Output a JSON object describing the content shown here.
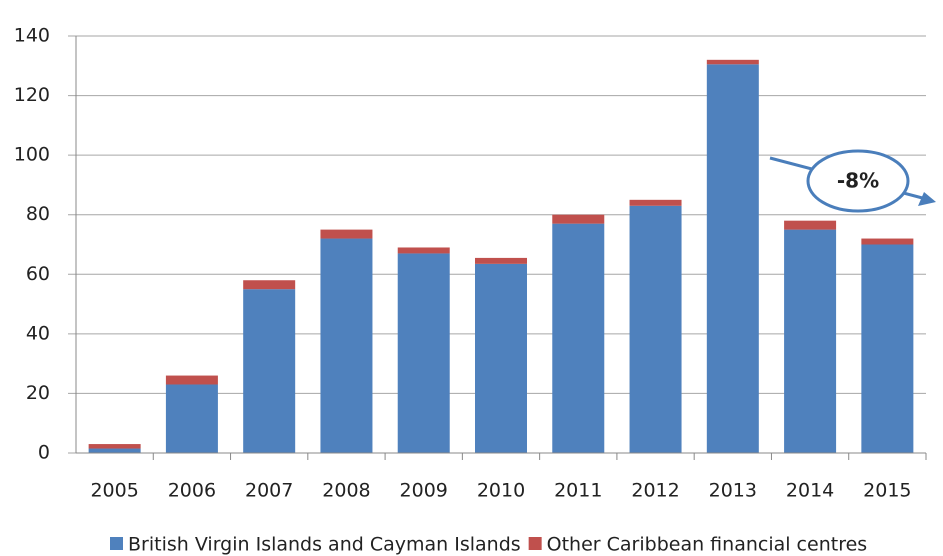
{
  "chart_data": {
    "type": "stacked_bar",
    "categories": [
      "2005",
      "2006",
      "2007",
      "2008",
      "2009",
      "2010",
      "2011",
      "2012",
      "2013",
      "2014",
      "2015"
    ],
    "series": [
      {
        "name": "British Virgin Islands and Cayman Islands",
        "color": "#4f81bd",
        "values": [
          1.5,
          23,
          55,
          72,
          67,
          63.5,
          77,
          83,
          130.5,
          75,
          70
        ]
      },
      {
        "name": "Other Caribbean financial centres",
        "color": "#c0504d",
        "values": [
          1.5,
          3,
          3,
          3,
          2,
          2,
          3,
          2,
          1.5,
          3,
          2
        ]
      }
    ],
    "ylim": [
      0,
      140
    ],
    "yticks": [
      0,
      20,
      40,
      60,
      80,
      100,
      120,
      140
    ],
    "grid": true,
    "legend": "bottom",
    "annotations": [
      "-8%"
    ]
  }
}
